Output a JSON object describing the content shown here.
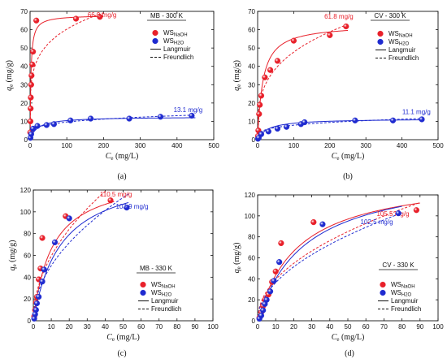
{
  "chart_data": [
    {
      "type": "scatter",
      "panel_label": "(a)",
      "tag": "MB - 300 K",
      "xlabel_sym": "C",
      "xlabel_sub": "e",
      "xlabel_unit": " (mg/L)",
      "ylabel_sym": "q",
      "ylabel_sub": "e",
      "ylabel_unit": " (mg/g)",
      "xlim": [
        0,
        500
      ],
      "ylim": [
        0,
        70
      ],
      "xticks": [
        0,
        100,
        200,
        300,
        400,
        500
      ],
      "yticks": [
        0,
        10,
        20,
        30,
        40,
        50,
        60,
        70
      ],
      "legend": [
        {
          "kind": "marker",
          "base": "WS",
          "sub": "NaOH",
          "color": "#e8202a"
        },
        {
          "kind": "marker",
          "base": "WS",
          "sub": "H2O",
          "color": "#1f2bd0"
        },
        {
          "kind": "solid",
          "text": "Langmuir"
        },
        {
          "kind": "dashed",
          "text": "Freundlich"
        }
      ],
      "series": [
        {
          "name": "WS_NaOH",
          "color": "#e8202a",
          "x": [
            0.5,
            1,
            1.5,
            2,
            3,
            4,
            6,
            8,
            17,
            125,
            190
          ],
          "y": [
            4,
            10,
            17,
            23,
            30,
            35,
            41,
            48,
            65,
            66,
            67
          ],
          "annotation": {
            "text": "66.9 mg/g",
            "x": 196,
            "y": 66.9
          }
        },
        {
          "name": "WS_H2O",
          "color": "#1f2bd0",
          "x": [
            1,
            3,
            8,
            20,
            45,
            65,
            110,
            165,
            270,
            355,
            440
          ],
          "y": [
            1,
            3,
            6,
            7.5,
            8,
            8.5,
            10.5,
            11.5,
            11.5,
            12.5,
            13.1
          ],
          "annotation": {
            "text": "13.1 mg/g",
            "x": 430,
            "y": 15
          }
        }
      ],
      "fits": [
        {
          "kind": "langmuir",
          "color": "#e8202a",
          "qm": 68,
          "K": 0.45,
          "xmax": 200
        },
        {
          "kind": "freundlich",
          "color": "#e8202a",
          "Kf": 24,
          "n": 0.2,
          "xmax": 200
        },
        {
          "kind": "langmuir",
          "color": "#1f2bd0",
          "qm": 12.5,
          "K": 0.05,
          "xmax": 450
        },
        {
          "kind": "freundlich",
          "color": "#1f2bd0",
          "Kf": 3.5,
          "n": 0.22,
          "xmax": 450
        }
      ]
    },
    {
      "type": "scatter",
      "panel_label": "(b)",
      "tag": "CV - 300 K",
      "xlabel_sym": "C",
      "xlabel_sub": "e",
      "xlabel_unit": " (mg/L)",
      "ylabel_sym": "q",
      "ylabel_sub": "e",
      "ylabel_unit": " (mg/g)",
      "xlim": [
        0,
        500
      ],
      "ylim": [
        0,
        70
      ],
      "xticks": [
        0,
        100,
        200,
        300,
        400,
        500
      ],
      "yticks": [
        0,
        10,
        20,
        30,
        40,
        50,
        60,
        70
      ],
      "legend": [
        {
          "kind": "marker",
          "base": "WS",
          "sub": "NaOH",
          "color": "#e8202a"
        },
        {
          "kind": "marker",
          "base": "WS",
          "sub": "H2O",
          "color": "#1f2bd0"
        },
        {
          "kind": "solid",
          "text": "Langmuir"
        },
        {
          "kind": "dashed",
          "text": "Freundlich"
        }
      ],
      "series": [
        {
          "name": "WS_NaOH",
          "color": "#e8202a",
          "x": [
            1,
            2,
            4,
            6,
            10,
            20,
            35,
            55,
            100,
            200,
            245
          ],
          "y": [
            2,
            5,
            14,
            19,
            24,
            34,
            38,
            43,
            54,
            57,
            61.8
          ],
          "annotation": {
            "text": "61.8 mg/g",
            "x": 225,
            "y": 66
          }
        },
        {
          "name": "WS_H2O",
          "color": "#1f2bd0",
          "x": [
            1,
            3,
            10,
            30,
            55,
            80,
            120,
            130,
            270,
            375,
            455
          ],
          "y": [
            0.5,
            1,
            3,
            4.5,
            6,
            7,
            8.5,
            9.5,
            10.5,
            10.5,
            11.1
          ],
          "annotation": {
            "text": "11.1 mg/g",
            "x": 440,
            "y": 14
          }
        }
      ],
      "fits": [
        {
          "kind": "langmuir",
          "color": "#e8202a",
          "qm": 63,
          "K": 0.07,
          "xmax": 250
        },
        {
          "kind": "freundlich",
          "color": "#e8202a",
          "Kf": 12,
          "n": 0.3,
          "xmax": 250
        },
        {
          "kind": "langmuir",
          "color": "#1f2bd0",
          "qm": 11.5,
          "K": 0.035,
          "xmax": 460
        },
        {
          "kind": "freundlich",
          "color": "#1f2bd0",
          "Kf": 2.5,
          "n": 0.25,
          "xmax": 460
        }
      ]
    },
    {
      "type": "scatter",
      "panel_label": "(c)",
      "tag": "MB - 330 K",
      "xlabel_sym": "C",
      "xlabel_sub": "e",
      "xlabel_unit": " (mg/L)",
      "ylabel_sym": "q",
      "ylabel_sub": "e",
      "ylabel_unit": " (mg/g)",
      "xlim": [
        0,
        100
      ],
      "ylim": [
        0,
        120
      ],
      "xticks": [
        0,
        10,
        20,
        30,
        40,
        50,
        60,
        70,
        80,
        90,
        100
      ],
      "yticks": [
        0,
        20,
        40,
        60,
        80,
        100,
        120
      ],
      "legend": [
        {
          "kind": "marker",
          "base": "WS",
          "sub": "NaOH",
          "color": "#e8202a"
        },
        {
          "kind": "marker",
          "base": "WS",
          "sub": "H2O",
          "color": "#1f2bd0"
        },
        {
          "kind": "solid",
          "text": "Langmuir"
        },
        {
          "kind": "dashed",
          "text": "Freundlich"
        }
      ],
      "series": [
        {
          "name": "WS_NaOH",
          "color": "#e8202a",
          "x": [
            0.5,
            1,
            1.5,
            2,
            3,
            4,
            5,
            18,
            43
          ],
          "y": [
            4,
            10,
            17,
            22,
            38,
            48,
            76,
            96,
            110.5
          ],
          "annotation": {
            "text": "110.5 mg/g",
            "x": 46,
            "y": 114
          }
        },
        {
          "name": "WS_H2O",
          "color": "#1f2bd0",
          "x": [
            0.5,
            1,
            1.5,
            2,
            3,
            5,
            6,
            12,
            20,
            52
          ],
          "y": [
            2,
            6,
            10,
            16,
            22,
            36,
            47,
            72,
            94,
            103.9
          ],
          "annotation": {
            "text": "103.9 mg/g",
            "x": 55,
            "y": 103
          }
        }
      ],
      "fits": [
        {
          "kind": "langmuir",
          "color": "#e8202a",
          "qm": 135,
          "K": 0.095,
          "xmax": 45
        },
        {
          "kind": "freundlich",
          "color": "#e8202a",
          "Kf": 18.8,
          "n": 0.5,
          "xmax": 45
        },
        {
          "kind": "langmuir",
          "color": "#1f2bd0",
          "qm": 140,
          "K": 0.065,
          "xmax": 53
        },
        {
          "kind": "freundlich",
          "color": "#1f2bd0",
          "Kf": 16,
          "n": 0.5,
          "xmax": 53
        }
      ]
    },
    {
      "type": "scatter",
      "panel_label": "(d)",
      "tag": "CV - 330 K",
      "xlabel_sym": "C",
      "xlabel_sub": "e",
      "xlabel_unit": " (mg/L)",
      "ylabel_sym": "q",
      "ylabel_sub": "e",
      "ylabel_unit": " (mg/g)",
      "xlim": [
        0,
        100
      ],
      "ylim": [
        0,
        120
      ],
      "xticks": [
        0,
        10,
        20,
        30,
        40,
        50,
        60,
        70,
        80,
        90,
        100
      ],
      "yticks": [
        0,
        20,
        40,
        60,
        80,
        100,
        120
      ],
      "legend": [
        {
          "kind": "marker",
          "base": "WS",
          "sub": "NaOH",
          "color": "#e8202a"
        },
        {
          "kind": "marker",
          "base": "WS",
          "sub": "H2O",
          "color": "#1f2bd0"
        },
        {
          "kind": "solid",
          "text": "Langmuir"
        },
        {
          "kind": "dashed",
          "text": "Freundlich"
        }
      ],
      "series": [
        {
          "name": "WS_NaOH",
          "color": "#e8202a",
          "x": [
            1,
            2,
            3,
            4,
            6,
            8,
            10,
            13,
            31,
            88
          ],
          "y": [
            3,
            8,
            14,
            20,
            25,
            37,
            47,
            74,
            94,
            105.5
          ],
          "annotation": {
            "text": "105.5 mg/g",
            "x": 75,
            "y": 100
          }
        },
        {
          "name": "WS_H2O",
          "color": "#1f2bd0",
          "x": [
            1,
            2,
            3,
            4,
            5,
            7,
            9,
            12,
            36,
            78
          ],
          "y": [
            2,
            5,
            10,
            16,
            20,
            28,
            38,
            56,
            92,
            102.5
          ],
          "annotation": {
            "text": "102.5 mg/g",
            "x": 66,
            "y": 92
          }
        }
      ],
      "fits": [
        {
          "kind": "langmuir",
          "color": "#e8202a",
          "qm": 140,
          "K": 0.045,
          "xmax": 90
        },
        {
          "kind": "freundlich",
          "color": "#e8202a",
          "Kf": 13,
          "n": 0.48,
          "xmax": 90
        },
        {
          "kind": "langmuir",
          "color": "#1f2bd0",
          "qm": 145,
          "K": 0.038,
          "xmax": 80
        },
        {
          "kind": "freundlich",
          "color": "#1f2bd0",
          "Kf": 11.5,
          "n": 0.5,
          "xmax": 80
        }
      ]
    }
  ]
}
